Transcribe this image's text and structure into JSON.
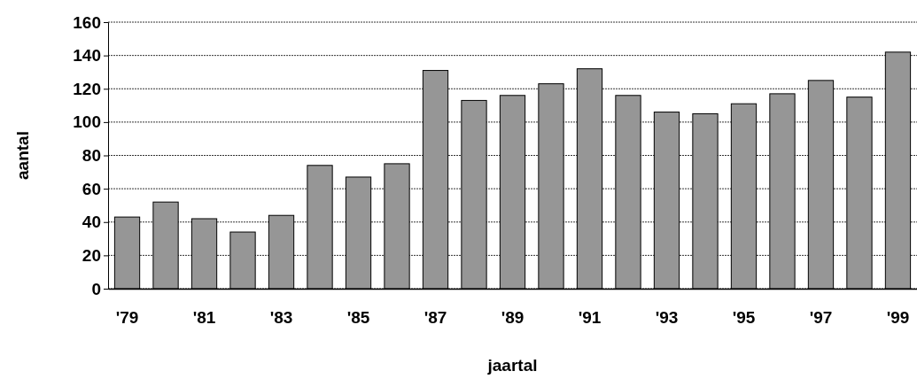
{
  "chart_data": {
    "type": "bar",
    "xlabel": "jaartal",
    "ylabel": "aantal",
    "categories": [
      "'79",
      null,
      "'81",
      null,
      "'83",
      null,
      "'85",
      null,
      "'87",
      null,
      "'89",
      null,
      "'91",
      null,
      "'93",
      null,
      "'95",
      null,
      "'97",
      null,
      "'99"
    ],
    "values": [
      43,
      52,
      42,
      34,
      44,
      74,
      67,
      75,
      131,
      113,
      116,
      123,
      132,
      116,
      106,
      105,
      111,
      117,
      125,
      115,
      142
    ],
    "color": "#969696",
    "ylim": [
      0,
      160
    ],
    "yticks": [
      0,
      20,
      40,
      60,
      80,
      100,
      120,
      140,
      160
    ],
    "grid": "y"
  }
}
